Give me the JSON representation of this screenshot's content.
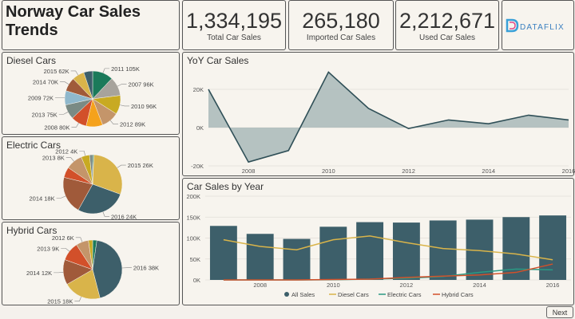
{
  "header": {
    "title_line1": "Norway Car Sales",
    "title_line2": "Trends"
  },
  "kpis": [
    {
      "value": "1,334,195",
      "label": "Total Car Sales"
    },
    {
      "value": "265,180",
      "label": "Imported Car Sales"
    },
    {
      "value": "2,212,671",
      "label": "Used Car Sales"
    }
  ],
  "logo": {
    "text": "DATAFLIX",
    "colors": [
      "#3aa0d8",
      "#a46bd0",
      "#e24a8a"
    ]
  },
  "pies": [
    {
      "title": "Diesel Cars",
      "chart_data": {
        "type": "pie",
        "slices": [
          {
            "label": "2011 105K",
            "value": 105,
            "color": "#1b7a5a"
          },
          {
            "label": "2007 96K",
            "value": 96,
            "color": "#a7a39c"
          },
          {
            "label": "2010 96K",
            "value": 96,
            "color": "#c8aa22"
          },
          {
            "label": "2012 89K",
            "value": 89,
            "color": "#c4956a"
          },
          {
            "label": "",
            "value": 84,
            "color": "#f5a21c"
          },
          {
            "label": "2008 80K",
            "value": 80,
            "color": "#d2502a"
          },
          {
            "label": "2013 75K",
            "value": 75,
            "color": "#7a8a84"
          },
          {
            "label": "2009 72K",
            "value": 72,
            "color": "#8fb8cc"
          },
          {
            "label": "2014 70K",
            "value": 70,
            "color": "#a05a3a"
          },
          {
            "label": "2015 62K",
            "value": 62,
            "color": "#d9b44a"
          },
          {
            "label": "",
            "value": 45,
            "color": "#3d5f6a"
          }
        ]
      }
    },
    {
      "title": "Electric Cars",
      "chart_data": {
        "type": "pie",
        "slices": [
          {
            "label": "",
            "value": 0.6,
            "color": "#1b7a5a"
          },
          {
            "label": "2015 26K",
            "value": 26,
            "color": "#d9b44a"
          },
          {
            "label": "2016 24K",
            "value": 24,
            "color": "#3d5f6a"
          },
          {
            "label": "2014 18K",
            "value": 18,
            "color": "#a05a3a"
          },
          {
            "label": "",
            "value": 5,
            "color": "#d2502a"
          },
          {
            "label": "2013 8K",
            "value": 8,
            "color": "#c4956a"
          },
          {
            "label": "2012 4K",
            "value": 4,
            "color": "#c8aa22"
          },
          {
            "label": "",
            "value": 1.5,
            "color": "#7a8a84"
          }
        ]
      }
    },
    {
      "title": "Hybrid Cars",
      "chart_data": {
        "type": "pie",
        "slices": [
          {
            "label": "",
            "value": 2,
            "color": "#1b7a5a"
          },
          {
            "label": "2016 38K",
            "value": 38,
            "color": "#3d5f6a"
          },
          {
            "label": "2015 18K",
            "value": 18,
            "color": "#d9b44a"
          },
          {
            "label": "2014 12K",
            "value": 12,
            "color": "#a05a3a"
          },
          {
            "label": "2013 9K",
            "value": 9,
            "color": "#d2502a"
          },
          {
            "label": "2012 6K",
            "value": 6,
            "color": "#c4956a"
          },
          {
            "label": "",
            "value": 2,
            "color": "#c8aa22"
          }
        ]
      }
    }
  ],
  "yoy": {
    "title": "YoY Car Sales",
    "chart_data": {
      "type": "area",
      "x": [
        2007,
        2008,
        2009,
        2010,
        2011,
        2012,
        2013,
        2014,
        2015,
        2016
      ],
      "values": [
        20000,
        -18000,
        -12000,
        29000,
        10000,
        -500,
        4000,
        2000,
        6500,
        4000
      ],
      "ylim": [
        -20000,
        30000
      ],
      "yticks": [
        "20K",
        "0K",
        "-20K"
      ],
      "xticks": [
        "2008",
        "2010",
        "2012",
        "2014",
        "2016"
      ]
    }
  },
  "sales": {
    "title": "Car Sales by Year",
    "chart_data": {
      "type": "bar",
      "categories": [
        2007,
        2008,
        2009,
        2010,
        2011,
        2012,
        2013,
        2014,
        2015,
        2016
      ],
      "ylim": [
        0,
        200000
      ],
      "yticks": [
        "200K",
        "150K",
        "100K",
        "50K",
        "0K"
      ],
      "xticks": [
        "2008",
        "2010",
        "2012",
        "2014",
        "2016"
      ],
      "series": [
        {
          "name": "All Sales",
          "type": "bar",
          "color": "#3d5f6a",
          "values": [
            129000,
            110000,
            98000,
            127000,
            138000,
            137000,
            142000,
            144000,
            150000,
            154000
          ]
        },
        {
          "name": "Diesel Cars",
          "type": "line",
          "color": "#d9b44a",
          "values": [
            96000,
            80000,
            72000,
            96000,
            105000,
            89000,
            75000,
            70000,
            62000,
            48000
          ]
        },
        {
          "name": "Electric Cars",
          "type": "line",
          "color": "#2a9a84",
          "values": [
            0,
            0,
            0,
            500,
            2000,
            4000,
            8000,
            18000,
            26000,
            24000
          ]
        },
        {
          "name": "Hybrid Cars",
          "type": "line",
          "color": "#d2502a",
          "values": [
            0,
            0,
            0,
            1000,
            2000,
            6000,
            9000,
            12000,
            18000,
            38000
          ]
        }
      ]
    }
  },
  "nav": {
    "next_label": "Next"
  }
}
